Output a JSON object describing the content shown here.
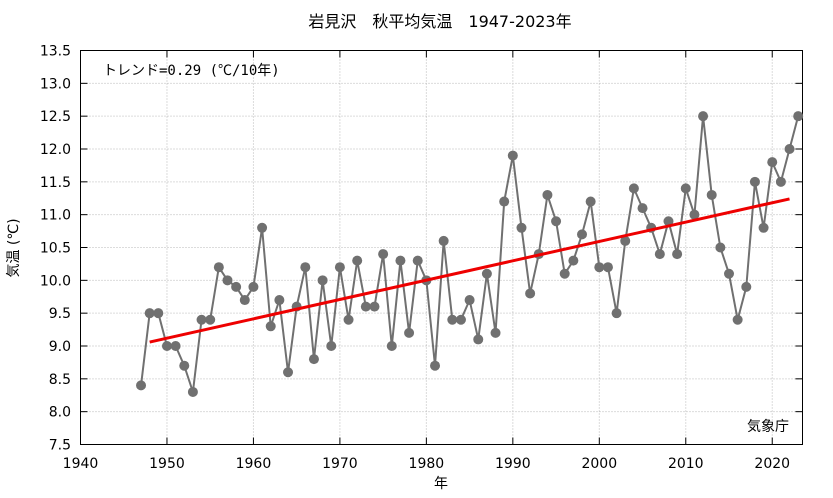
{
  "chart_data": {
    "type": "line",
    "title": "岩見沢　秋平均気温　1947-2023年",
    "xlabel": "年",
    "ylabel": "気温 (℃)",
    "xlim": [
      1940,
      2023.5
    ],
    "ylim": [
      7.5,
      13.5
    ],
    "x_ticks": [
      "1940",
      "1950",
      "1960",
      "1970",
      "1980",
      "1990",
      "2000",
      "2010",
      "2020"
    ],
    "y_ticks": [
      "7.5",
      "8.0",
      "8.5",
      "9.0",
      "9.5",
      "10.0",
      "10.5",
      "11.0",
      "11.5",
      "12.0",
      "12.5",
      "13.0",
      "13.5"
    ],
    "grid": true,
    "annotation": "トレンド=0.29 (℃/10年)",
    "credit": "気象庁",
    "series_color": "#707070",
    "trend_color": "#ee0000",
    "x": [
      1947,
      1948,
      1949,
      1950,
      1951,
      1952,
      1953,
      1954,
      1955,
      1956,
      1957,
      1958,
      1959,
      1960,
      1961,
      1962,
      1963,
      1964,
      1965,
      1966,
      1967,
      1968,
      1969,
      1970,
      1971,
      1972,
      1973,
      1974,
      1975,
      1976,
      1977,
      1978,
      1979,
      1980,
      1981,
      1982,
      1983,
      1984,
      1985,
      1986,
      1987,
      1988,
      1989,
      1990,
      1991,
      1992,
      1993,
      1994,
      1995,
      1996,
      1997,
      1998,
      1999,
      2000,
      2001,
      2002,
      2003,
      2004,
      2005,
      2006,
      2007,
      2008,
      2009,
      2010,
      2011,
      2012,
      2013,
      2014,
      2015,
      2016,
      2017,
      2018,
      2019,
      2020,
      2021,
      2022,
      2023
    ],
    "series": [
      {
        "values": [
          8.4,
          9.5,
          9.5,
          9.0,
          9.0,
          8.7,
          8.3,
          9.4,
          9.4,
          10.2,
          10.0,
          9.9,
          9.7,
          9.9,
          10.8,
          9.3,
          9.7,
          8.6,
          9.6,
          10.2,
          8.8,
          10.0,
          9.0,
          10.2,
          9.4,
          10.3,
          9.6,
          9.6,
          10.4,
          9.0,
          10.3,
          9.2,
          10.3,
          10.0,
          8.7,
          10.6,
          9.4,
          9.4,
          9.7,
          9.1,
          10.1,
          9.2,
          11.2,
          11.9,
          10.8,
          9.8,
          10.4,
          11.3,
          10.9,
          10.1,
          10.3,
          10.7,
          11.2,
          10.2,
          10.2,
          9.5,
          10.6,
          11.4,
          11.1,
          10.8,
          10.4,
          10.9,
          10.4,
          11.4,
          11.0,
          12.5,
          11.3,
          10.5,
          10.1,
          9.4,
          9.9,
          11.5,
          10.8,
          11.8,
          11.5,
          12.0,
          12.5
        ]
      }
    ],
    "trend": {
      "x": [
        1948,
        2022
      ],
      "y": [
        9.06,
        11.24
      ]
    }
  }
}
